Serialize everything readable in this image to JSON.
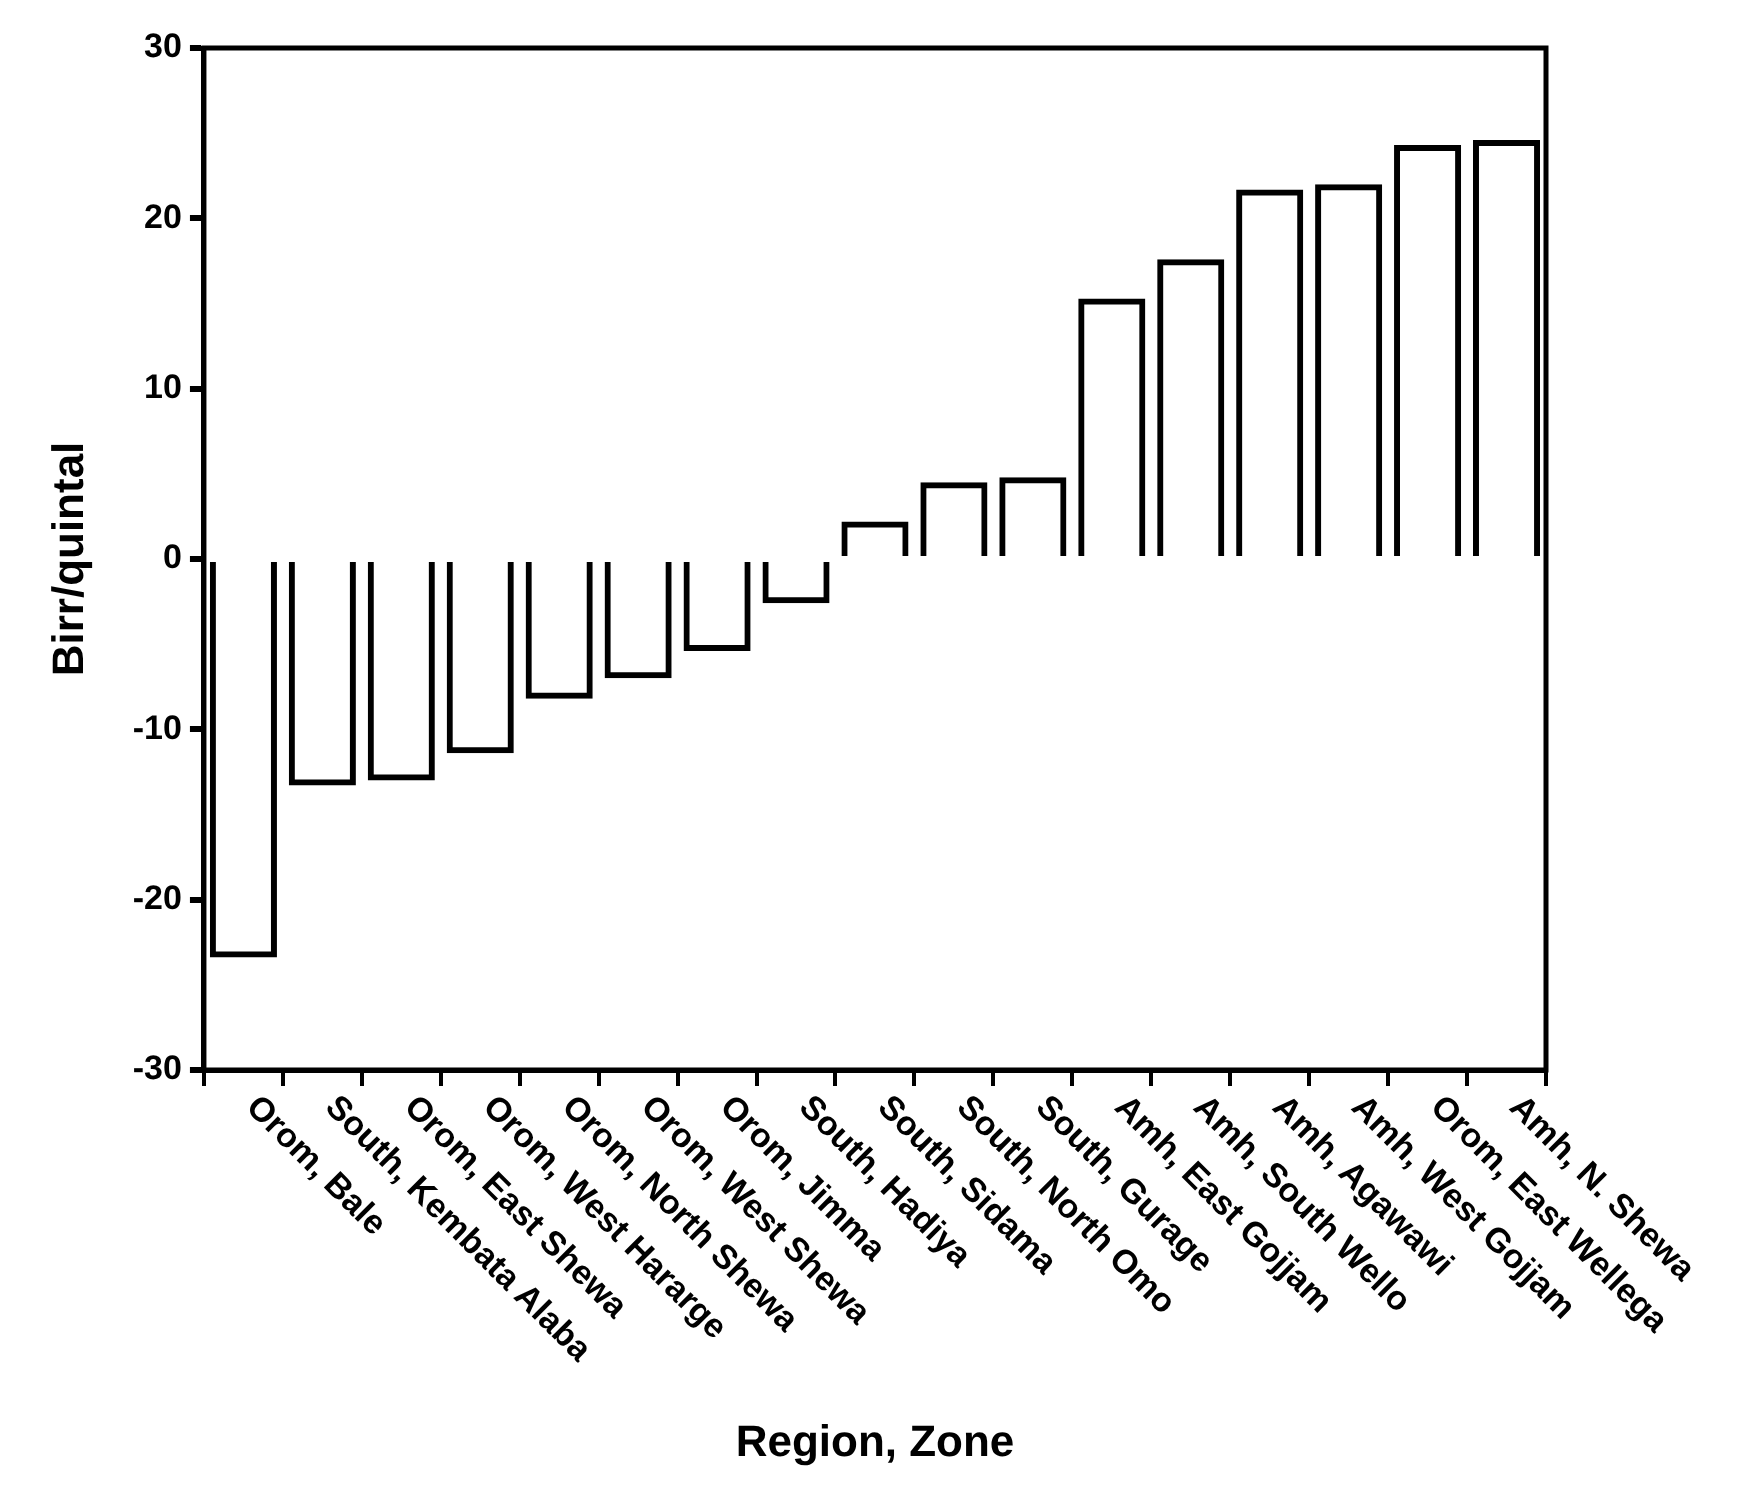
{
  "chart_data": {
    "type": "bar",
    "xlabel": "Region, Zone",
    "ylabel": "Birr/quintal",
    "categories": [
      "Orom, Bale",
      "South, Kembata Alaba",
      "Orom, East Shewa",
      "Orom, West Hararge",
      "Orom, North Shewa",
      "Orom, West Shewa",
      "Orom, Jimma",
      "South, Hadiya",
      "South, Sidama",
      "South, North Omo",
      "South, Gurage",
      "Amh, East Gojjam",
      "Amh, South Wello",
      "Amh, Agawawi",
      "Amh, West Gojjam",
      "Orom, East Wellega",
      "Amh, N. Shewa"
    ],
    "values": [
      -23.4,
      -13.3,
      -13.0,
      -11.4,
      -8.2,
      -7.0,
      -5.4,
      -2.6,
      2.2,
      4.5,
      4.8,
      15.3,
      17.6,
      21.7,
      22.0,
      24.3,
      24.6
    ],
    "color": "#000000",
    "ylim": [
      -30,
      30
    ],
    "yticks": [
      -30,
      -20,
      -10,
      0,
      10,
      20,
      30
    ],
    "grid": false,
    "legend": false
  }
}
